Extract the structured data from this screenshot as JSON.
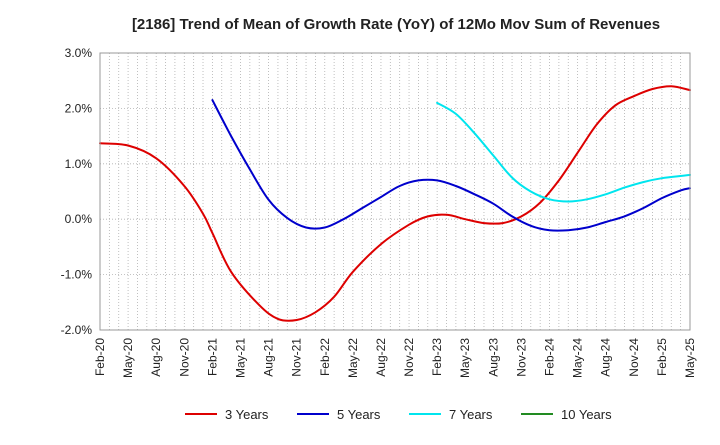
{
  "chart_data": {
    "type": "line",
    "title": "[2186]  Trend of Mean of Growth Rate (YoY) of 12Mo Mov Sum of Revenues",
    "xlabel": "",
    "ylabel": "",
    "ylim": [
      -2.0,
      3.0
    ],
    "yticks": [
      3.0,
      2.0,
      1.0,
      0.0,
      -1.0,
      -2.0
    ],
    "ytick_labels": [
      "3.0%",
      "2.0%",
      "1.0%",
      "0.0%",
      "-1.0%",
      "-2.0%"
    ],
    "x_start": "Feb-20",
    "x_months": 63,
    "xtick_labels": [
      "Feb-20",
      "May-20",
      "Aug-20",
      "Nov-20",
      "Feb-21",
      "May-21",
      "Aug-21",
      "Nov-21",
      "Feb-22",
      "May-22",
      "Aug-22",
      "Nov-22",
      "Feb-23",
      "May-23",
      "Aug-23",
      "Nov-23",
      "Feb-24",
      "May-24",
      "Aug-24",
      "Nov-24",
      "Feb-25",
      "May-25"
    ],
    "grid": true,
    "legend_position": "bottom",
    "series": [
      {
        "name": "3 Years",
        "color": "#dd0000",
        "points": [
          [
            0,
            1.37
          ],
          [
            3,
            1.33
          ],
          [
            6,
            1.1
          ],
          [
            9,
            0.6
          ],
          [
            11,
            0.1
          ],
          [
            12,
            -0.25
          ],
          [
            14,
            -0.95
          ],
          [
            17,
            -1.55
          ],
          [
            19,
            -1.8
          ],
          [
            21,
            -1.82
          ],
          [
            23,
            -1.68
          ],
          [
            25,
            -1.4
          ],
          [
            27,
            -0.95
          ],
          [
            30,
            -0.45
          ],
          [
            33,
            -0.1
          ],
          [
            35,
            0.05
          ],
          [
            37,
            0.08
          ],
          [
            39,
            0.0
          ],
          [
            41,
            -0.07
          ],
          [
            43,
            -0.07
          ],
          [
            45,
            0.05
          ],
          [
            47,
            0.3
          ],
          [
            49,
            0.7
          ],
          [
            51,
            1.2
          ],
          [
            53,
            1.7
          ],
          [
            55,
            2.05
          ],
          [
            57,
            2.22
          ],
          [
            59,
            2.35
          ],
          [
            61,
            2.4
          ],
          [
            63,
            2.33
          ]
        ]
      },
      {
        "name": "5 Years",
        "color": "#0000cc",
        "points": [
          [
            12,
            2.15
          ],
          [
            14,
            1.5
          ],
          [
            16,
            0.9
          ],
          [
            18,
            0.35
          ],
          [
            20,
            0.02
          ],
          [
            22,
            -0.15
          ],
          [
            24,
            -0.15
          ],
          [
            26,
            0.0
          ],
          [
            28,
            0.2
          ],
          [
            30,
            0.4
          ],
          [
            32,
            0.6
          ],
          [
            34,
            0.7
          ],
          [
            36,
            0.7
          ],
          [
            38,
            0.6
          ],
          [
            40,
            0.45
          ],
          [
            42,
            0.28
          ],
          [
            44,
            0.05
          ],
          [
            46,
            -0.12
          ],
          [
            48,
            -0.2
          ],
          [
            50,
            -0.2
          ],
          [
            52,
            -0.15
          ],
          [
            54,
            -0.05
          ],
          [
            56,
            0.05
          ],
          [
            58,
            0.2
          ],
          [
            60,
            0.38
          ],
          [
            62,
            0.52
          ],
          [
            63,
            0.56
          ]
        ]
      },
      {
        "name": "7 Years",
        "color": "#00e5ee",
        "points": [
          [
            36,
            2.1
          ],
          [
            38,
            1.9
          ],
          [
            40,
            1.55
          ],
          [
            42,
            1.15
          ],
          [
            44,
            0.75
          ],
          [
            46,
            0.5
          ],
          [
            48,
            0.36
          ],
          [
            50,
            0.32
          ],
          [
            52,
            0.36
          ],
          [
            54,
            0.45
          ],
          [
            56,
            0.57
          ],
          [
            58,
            0.67
          ],
          [
            60,
            0.74
          ],
          [
            62,
            0.78
          ],
          [
            63,
            0.8
          ]
        ]
      },
      {
        "name": "10 Years",
        "color": "#228b22",
        "points": []
      }
    ]
  }
}
